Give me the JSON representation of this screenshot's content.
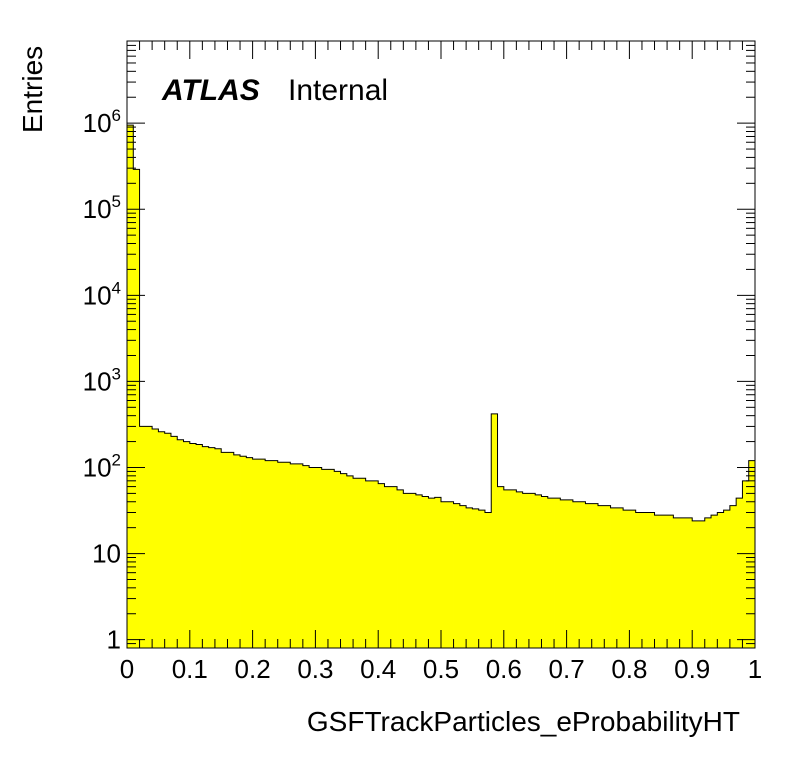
{
  "chart_data": {
    "type": "histogram",
    "title": "",
    "xlabel": "GSFTrackParticles_eProbabilityHT",
    "ylabel": "Entries",
    "experiment_label": "ATLAS",
    "experiment_status": "Internal",
    "xlim": [
      0,
      1
    ],
    "ylim": [
      0.8,
      9000000
    ],
    "yscale": "log",
    "fill_color": "#ffff00",
    "line_color": "#000000",
    "x_ticks": [
      {
        "value": 0,
        "label": "0"
      },
      {
        "value": 0.1,
        "label": "0.1"
      },
      {
        "value": 0.2,
        "label": "0.2"
      },
      {
        "value": 0.3,
        "label": "0.3"
      },
      {
        "value": 0.4,
        "label": "0.4"
      },
      {
        "value": 0.5,
        "label": "0.5"
      },
      {
        "value": 0.6,
        "label": "0.6"
      },
      {
        "value": 0.7,
        "label": "0.7"
      },
      {
        "value": 0.8,
        "label": "0.8"
      },
      {
        "value": 0.9,
        "label": "0.9"
      },
      {
        "value": 1,
        "label": "1"
      }
    ],
    "y_ticks": [
      {
        "value": 1,
        "base": "1",
        "exp": ""
      },
      {
        "value": 10,
        "base": "10",
        "exp": ""
      },
      {
        "value": 100,
        "base": "10",
        "exp": "2"
      },
      {
        "value": 1000,
        "base": "10",
        "exp": "3"
      },
      {
        "value": 10000,
        "base": "10",
        "exp": "4"
      },
      {
        "value": 100000,
        "base": "10",
        "exp": "5"
      },
      {
        "value": 1000000,
        "base": "10",
        "exp": "6"
      }
    ],
    "bin_edges": [
      0,
      1
    ],
    "bins": 100,
    "values": [
      950000,
      290000,
      300,
      300,
      280,
      260,
      250,
      230,
      210,
      200,
      190,
      185,
      175,
      170,
      165,
      150,
      150,
      140,
      135,
      130,
      125,
      125,
      120,
      120,
      115,
      115,
      110,
      110,
      105,
      100,
      100,
      95,
      95,
      90,
      85,
      80,
      75,
      75,
      70,
      70,
      65,
      60,
      60,
      55,
      50,
      50,
      48,
      46,
      44,
      45,
      40,
      40,
      38,
      36,
      34,
      33,
      32,
      30,
      420,
      60,
      55,
      55,
      52,
      50,
      50,
      48,
      46,
      44,
      44,
      42,
      42,
      40,
      40,
      38,
      38,
      36,
      36,
      34,
      34,
      32,
      32,
      30,
      30,
      30,
      28,
      28,
      28,
      26,
      26,
      26,
      24,
      24,
      26,
      28,
      30,
      32,
      36,
      44,
      70,
      120
    ],
    "values_note": ""
  }
}
